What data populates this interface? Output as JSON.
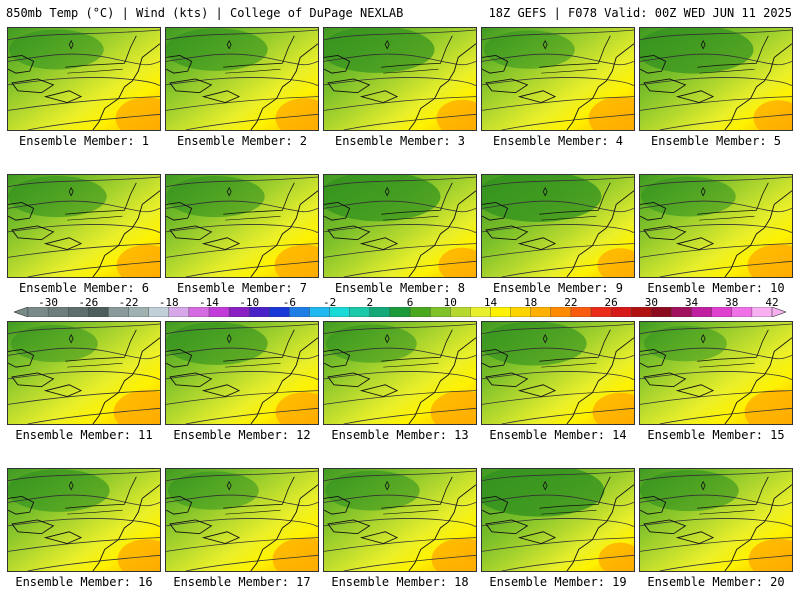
{
  "header": {
    "left": "850mb Temp (°C) | Wind (kts) | College of DuPage NEXLAB",
    "right": "18Z GEFS | F078 Valid: 00Z WED JUN 11 2025"
  },
  "panels": [
    {
      "label": "Ensemble Member: 1",
      "cool": 0.45
    },
    {
      "label": "Ensemble Member: 2",
      "cool": 0.55
    },
    {
      "label": "Ensemble Member: 3",
      "cool": 0.7
    },
    {
      "label": "Ensemble Member: 4",
      "cool": 0.4
    },
    {
      "label": "Ensemble Member: 5",
      "cool": 0.75
    },
    {
      "label": "Ensemble Member: 6",
      "cool": 0.5
    },
    {
      "label": "Ensemble Member: 7",
      "cool": 0.5
    },
    {
      "label": "Ensemble Member: 8",
      "cool": 0.8
    },
    {
      "label": "Ensemble Member: 9",
      "cool": 0.85
    },
    {
      "label": "Ensemble Member: 10",
      "cool": 0.45
    },
    {
      "label": "Ensemble Member: 11",
      "cool": 0.35
    },
    {
      "label": "Ensemble Member: 12",
      "cool": 0.55
    },
    {
      "label": "Ensemble Member: 13",
      "cool": 0.4
    },
    {
      "label": "Ensemble Member: 14",
      "cool": 0.6
    },
    {
      "label": "Ensemble Member: 15",
      "cool": 0.3
    },
    {
      "label": "Ensemble Member: 16",
      "cool": 0.55
    },
    {
      "label": "Ensemble Member: 17",
      "cool": 0.4
    },
    {
      "label": "Ensemble Member: 18",
      "cool": 0.45
    },
    {
      "label": "Ensemble Member: 19",
      "cool": 0.9
    },
    {
      "label": "Ensemble Member: 20",
      "cool": 0.5
    }
  ],
  "colorbar": {
    "labels": [
      "-30",
      "-26",
      "-22",
      "-18",
      "-14",
      "-10",
      "-6",
      "-2",
      "2",
      "6",
      "10",
      "14",
      "18",
      "22",
      "26",
      "30",
      "34",
      "38",
      "42"
    ],
    "colors": [
      "#7a8a88",
      "#6e7e7c",
      "#5d6e6c",
      "#4e5e5c",
      "#8a9a9a",
      "#9fb1b1",
      "#c0cfd8",
      "#d6a8e8",
      "#d66ae0",
      "#c23ad9",
      "#8a1fc4",
      "#4a20c8",
      "#1838d8",
      "#1e7ee6",
      "#1fb8f0",
      "#18dbd8",
      "#18c8a8",
      "#14a878",
      "#1a9a3a",
      "#4aa820",
      "#7fc22a",
      "#b5d92e",
      "#e9ef2a",
      "#fff200",
      "#ffd400",
      "#ffb000",
      "#ff8a00",
      "#f85a10",
      "#ec2a18",
      "#d61818",
      "#b01010",
      "#8c0a20",
      "#a01060",
      "#c020a0",
      "#e040d0",
      "#f070e8",
      "#f8b0f0"
    ]
  }
}
